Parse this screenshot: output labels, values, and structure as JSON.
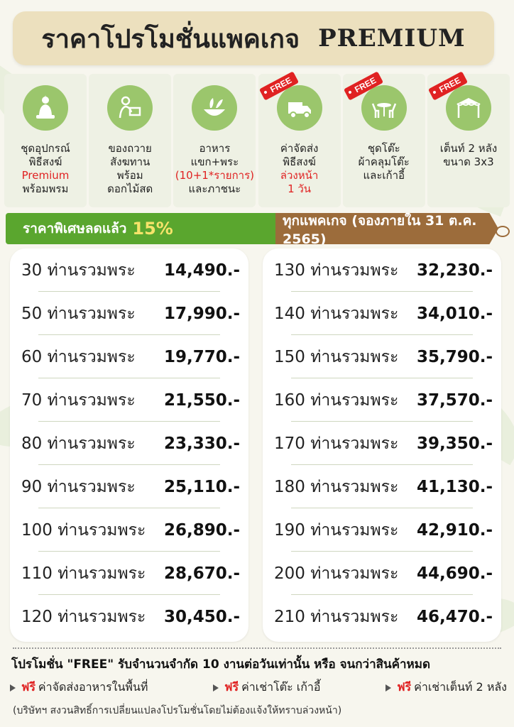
{
  "title": {
    "thai": "ราคาโปรโมชั่นแพคเกจ",
    "english": "PREMIUM"
  },
  "features": [
    {
      "icon": "buddha-icon",
      "free": false,
      "free_label": "",
      "lines": [
        {
          "text": "ชุดอุปกรณ์",
          "red": false
        },
        {
          "text": "พิธีสงฆ์",
          "red": false
        },
        {
          "text": "Premium",
          "red": true
        },
        {
          "text": "พร้อมพรม",
          "red": false
        }
      ]
    },
    {
      "icon": "offering-icon",
      "free": false,
      "free_label": "",
      "lines": [
        {
          "text": "ของถวาย",
          "red": false
        },
        {
          "text": "สังฆทาน",
          "red": false
        },
        {
          "text": "พร้อม",
          "red": false
        },
        {
          "text": "ดอกไม้สด",
          "red": false
        }
      ]
    },
    {
      "icon": "food-bowl-icon",
      "free": false,
      "free_label": "",
      "lines": [
        {
          "text": "อาหาร",
          "red": false
        },
        {
          "text": "แขก+พระ",
          "red": false
        },
        {
          "text": "(10+1*รายการ)",
          "red": true
        },
        {
          "text": "และภาชนะ",
          "red": false
        }
      ]
    },
    {
      "icon": "delivery-truck-icon",
      "free": true,
      "free_label": "FREE",
      "lines": [
        {
          "text": "ค่าจัดส่ง",
          "red": false
        },
        {
          "text": "พิธีสงฆ์",
          "red": false
        },
        {
          "text": "ล่วงหน้า",
          "red": true
        },
        {
          "text": "1 วัน",
          "red": true
        }
      ]
    },
    {
      "icon": "table-chairs-icon",
      "free": true,
      "free_label": "FREE",
      "lines": [
        {
          "text": "ชุดโต๊ะ",
          "red": false
        },
        {
          "text": "ผ้าคลุมโต๊ะ",
          "red": false
        },
        {
          "text": "และเก้าอี้",
          "red": false
        }
      ]
    },
    {
      "icon": "tent-icon",
      "free": true,
      "free_label": "FREE",
      "lines": [
        {
          "text": "เต็นท์ 2 หลัง",
          "red": false
        },
        {
          "text": "ขนาด 3x3",
          "red": false
        }
      ]
    }
  ],
  "banner": {
    "left_text": "ราคาพิเศษลดแล้ว",
    "percent": "15%",
    "right_text": "ทุกแพคเกจ (จองภายใน 31 ต.ค. 2565)"
  },
  "prices_left": [
    {
      "label": "30 ท่านรวมพระ",
      "price": "14,490.-"
    },
    {
      "label": "50 ท่านรวมพระ",
      "price": "17,990.-"
    },
    {
      "label": "60 ท่านรวมพระ",
      "price": "19,770.-"
    },
    {
      "label": "70 ท่านรวมพระ",
      "price": "21,550.-"
    },
    {
      "label": "80 ท่านรวมพระ",
      "price": "23,330.-"
    },
    {
      "label": "90 ท่านรวมพระ",
      "price": "25,110.-"
    },
    {
      "label": "100 ท่านรวมพระ",
      "price": "26,890.-"
    },
    {
      "label": "110 ท่านรวมพระ",
      "price": "28,670.-"
    },
    {
      "label": "120 ท่านรวมพระ",
      "price": "30,450.-"
    }
  ],
  "prices_right": [
    {
      "label": "130 ท่านรวมพระ",
      "price": "32,230.-"
    },
    {
      "label": "140 ท่านรวมพระ",
      "price": "34,010.-"
    },
    {
      "label": "150 ท่านรวมพระ",
      "price": "35,790.-"
    },
    {
      "label": "160 ท่านรวมพระ",
      "price": "37,570.-"
    },
    {
      "label": "170 ท่านรวมพระ",
      "price": "39,350.-"
    },
    {
      "label": "180 ท่านรวมพระ",
      "price": "41,130.-"
    },
    {
      "label": "190 ท่านรวมพระ",
      "price": "42,910.-"
    },
    {
      "label": "200 ท่านรวมพระ",
      "price": "44,690.-"
    },
    {
      "label": "210 ท่านรวมพระ",
      "price": "46,470.-"
    }
  ],
  "footer": {
    "promo": "โปรโมชั่น \"FREE\" รับจำนวนจำกัด 10 งานต่อวันเท่านั้น หรือ จนกว่าสินค้าหมด",
    "free_items": [
      {
        "free_word": "ฟรี",
        "text": "ค่าจัดส่งอาหารในพื้นที่"
      },
      {
        "free_word": "ฟรี",
        "text": "ค่าเช่าโต๊ะ เก้าอี้"
      },
      {
        "free_word": "ฟรี",
        "text": "ค่าเช่าเต็นท์ 2 หลัง"
      }
    ],
    "note": "(บริษัทฯ สงวนสิทธิ์การเปลี่ยนแปลงโปรโมชั่นโดยไม่ต้องแจ้งให้ทราบล่วงหน้า)"
  },
  "colors": {
    "green": "#5aa62e",
    "brown": "#9c6c3b",
    "red": "#e02222",
    "title_bg": "#ece0be",
    "icon_circle": "#9bc66c"
  }
}
